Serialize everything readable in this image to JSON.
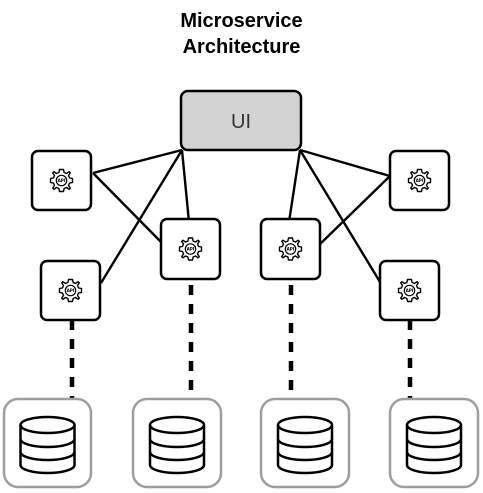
{
  "title": {
    "line1": "Microservice",
    "line2": "Architecture"
  },
  "ui_box": {
    "label": "UI",
    "fill": "#d3d3d3",
    "stroke": "#000000"
  },
  "services": [
    {
      "id": "svc-1",
      "icon": "gear-api-icon",
      "label": "API"
    },
    {
      "id": "svc-2",
      "icon": "gear-api-icon",
      "label": "API"
    },
    {
      "id": "svc-3",
      "icon": "gear-api-icon",
      "label": "API"
    },
    {
      "id": "svc-4",
      "icon": "gear-api-icon",
      "label": "API"
    },
    {
      "id": "svc-5",
      "icon": "gear-api-icon",
      "label": "API"
    },
    {
      "id": "svc-6",
      "icon": "gear-api-icon",
      "label": "API"
    },
    {
      "id": "svc-7",
      "icon": "gear-api-icon",
      "label": "API"
    },
    {
      "id": "svc-8",
      "icon": "gear-api-icon",
      "label": "API"
    }
  ],
  "databases": [
    {
      "id": "db-1",
      "icon": "database-icon"
    },
    {
      "id": "db-2",
      "icon": "database-icon"
    },
    {
      "id": "db-3",
      "icon": "database-icon"
    },
    {
      "id": "db-4",
      "icon": "database-icon"
    }
  ],
  "colors": {
    "line": "#000000",
    "db_frame": "#9e9e9e",
    "service_frame": "#000000"
  }
}
